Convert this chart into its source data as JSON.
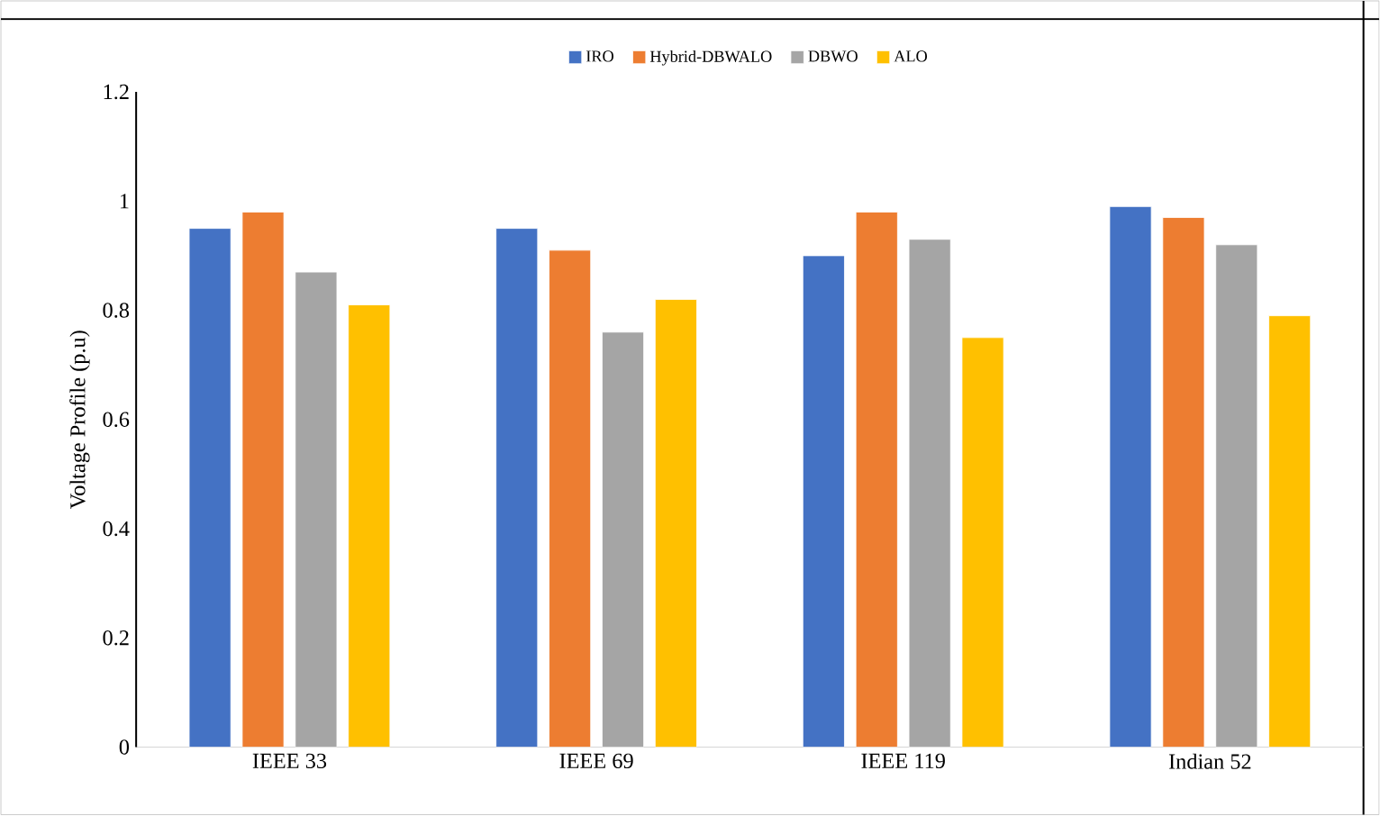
{
  "chart_data": {
    "type": "bar",
    "ylabel": "Voltage Profile (p.u)",
    "categories": [
      "IEEE 33",
      "IEEE 69",
      "IEEE 119",
      "Indian 52"
    ],
    "series": [
      {
        "name": "IRO",
        "color": "#4472c4",
        "values": [
          0.95,
          0.95,
          0.9,
          0.99
        ]
      },
      {
        "name": "Hybrid-DBWALO",
        "color": "#ed7d31",
        "values": [
          0.98,
          0.91,
          0.98,
          0.97
        ]
      },
      {
        "name": "DBWO",
        "color": "#a5a5a5",
        "values": [
          0.87,
          0.76,
          0.93,
          0.92
        ]
      },
      {
        "name": "ALO",
        "color": "#ffc000",
        "values": [
          0.81,
          0.82,
          0.75,
          0.79
        ]
      }
    ],
    "ylim": [
      0,
      1.2
    ],
    "yticks": [
      0,
      0.2,
      0.4,
      0.6,
      0.8,
      1,
      1.2
    ],
    "grid": false,
    "legend": "top"
  }
}
